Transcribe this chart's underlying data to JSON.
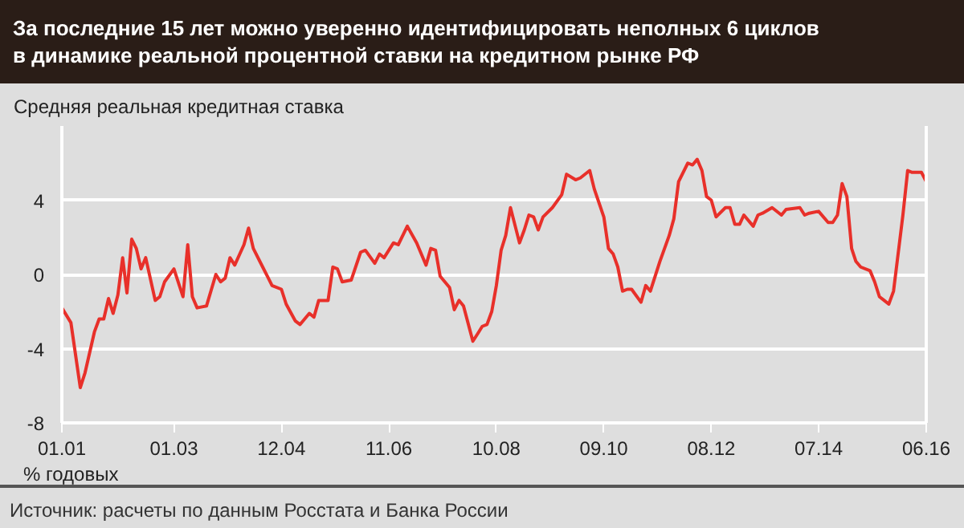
{
  "chart_data": {
    "type": "line",
    "title": "За последние 15 лет можно уверенно идентифицировать неполных 6 циклов\nв динамике реальной процентной ставки на кредитном рынке РФ",
    "ylabel": "Средняя реальная кредитная ставка",
    "annotations": [
      "% годовых",
      "Источник: расчеты по данным Росстата и Банка России"
    ],
    "x": [
      "2001-01",
      "2001-03",
      "2001-05",
      "2001-06",
      "2001-08",
      "2001-09",
      "2001-10",
      "2001-11",
      "2001-12",
      "2002-01",
      "2002-02",
      "2002-03",
      "2002-04",
      "2002-05",
      "2002-06",
      "2002-07",
      "2002-09",
      "2002-10",
      "2002-11",
      "2003-01",
      "2003-03",
      "2003-04",
      "2003-05",
      "2003-06",
      "2003-08",
      "2003-10",
      "2003-11",
      "2003-12",
      "2004-01",
      "2004-02",
      "2004-04",
      "2004-05",
      "2004-06",
      "2004-08",
      "2004-09",
      "2004-10",
      "2004-12",
      "2005-01",
      "2005-03",
      "2005-04",
      "2005-06",
      "2005-07",
      "2005-08",
      "2005-10",
      "2005-11",
      "2005-12",
      "2006-01",
      "2006-03",
      "2006-05",
      "2006-06",
      "2006-08",
      "2006-09",
      "2006-10",
      "2006-12",
      "2007-01",
      "2007-03",
      "2007-05",
      "2007-07",
      "2007-08",
      "2007-09",
      "2007-10",
      "2007-12",
      "2008-01",
      "2008-02",
      "2008-03",
      "2008-05",
      "2008-06",
      "2008-07",
      "2008-08",
      "2008-09",
      "2008-10",
      "2008-11",
      "2008-12",
      "2009-01",
      "2009-02",
      "2009-03",
      "2009-04",
      "2009-05",
      "2009-06",
      "2009-07",
      "2009-08",
      "2009-10",
      "2009-12",
      "2010-01",
      "2010-03",
      "2010-04",
      "2010-06",
      "2010-07",
      "2010-09",
      "2010-10",
      "2010-11",
      "2010-12",
      "2011-01",
      "2011-02",
      "2011-03",
      "2011-05",
      "2011-06",
      "2011-07",
      "2011-09",
      "2011-11",
      "2011-12",
      "2012-01",
      "2012-03",
      "2012-04",
      "2012-05",
      "2012-06",
      "2012-07",
      "2012-08",
      "2012-09",
      "2012-11",
      "2012-12",
      "2013-01",
      "2013-02",
      "2013-03",
      "2013-05",
      "2013-06",
      "2013-07",
      "2013-09",
      "2013-11",
      "2013-12",
      "2014-03",
      "2014-04",
      "2014-05",
      "2014-07",
      "2014-09",
      "2014-10",
      "2014-11",
      "2014-12",
      "2015-01",
      "2015-02",
      "2015-03",
      "2015-04",
      "2015-06",
      "2015-07",
      "2015-08",
      "2015-09",
      "2015-10",
      "2015-11",
      "2016-01",
      "2016-02",
      "2016-03",
      "2016-05",
      "2016-06"
    ],
    "series": [
      {
        "color": "#e8302a",
        "values": [
          -1.8,
          -2.6,
          -6.1,
          -5.3,
          -3.1,
          -2.4,
          -2.4,
          -1.3,
          -2.1,
          -1.1,
          0.9,
          -1.0,
          1.9,
          1.4,
          0.3,
          0.9,
          -1.4,
          -1.2,
          -0.4,
          0.3,
          -1.2,
          1.6,
          -1.2,
          -1.8,
          -1.7,
          0.0,
          -0.4,
          -0.2,
          0.9,
          0.5,
          1.6,
          2.5,
          1.4,
          0.4,
          -0.1,
          -0.6,
          -0.8,
          -1.6,
          -2.5,
          -2.7,
          -2.1,
          -2.3,
          -1.4,
          -1.4,
          0.4,
          0.3,
          -0.4,
          -0.3,
          1.2,
          1.3,
          0.6,
          1.1,
          0.9,
          1.7,
          1.6,
          2.6,
          1.7,
          0.5,
          1.4,
          1.3,
          -0.1,
          -0.7,
          -1.9,
          -1.4,
          -1.7,
          -3.6,
          -3.2,
          -2.8,
          -2.7,
          -2.0,
          -0.6,
          1.3,
          2.1,
          3.6,
          2.6,
          1.7,
          2.4,
          3.2,
          3.1,
          2.4,
          3.1,
          3.6,
          4.3,
          5.4,
          5.1,
          5.2,
          5.6,
          4.6,
          3.1,
          1.4,
          1.1,
          0.4,
          -0.9,
          -0.8,
          -0.8,
          -1.5,
          -0.6,
          -0.9,
          0.7,
          2.1,
          3.0,
          5.0,
          6.0,
          5.9,
          6.2,
          5.6,
          4.2,
          4.0,
          3.1,
          3.6,
          3.6,
          2.7,
          2.7,
          3.2,
          2.6,
          3.2,
          3.3,
          3.6,
          3.2,
          3.5,
          3.6,
          3.2,
          3.3,
          3.4,
          2.8,
          2.8,
          3.2,
          4.9,
          4.2,
          1.4,
          0.7,
          0.4,
          0.2,
          -0.4,
          -1.2,
          -1.4,
          -1.6,
          -0.9,
          3.2,
          5.6,
          5.5,
          5.5,
          5.0
        ]
      }
    ],
    "xlim": [
      "2001-01",
      "2016-06"
    ],
    "xticks": [
      {
        "value": "2001-01",
        "label": "01.01"
      },
      {
        "value": "2003-01",
        "label": "01.03"
      },
      {
        "value": "2004-12",
        "label": "12.04"
      },
      {
        "value": "2006-11",
        "label": "11.06"
      },
      {
        "value": "2008-10",
        "label": "10.08"
      },
      {
        "value": "2010-09",
        "label": "09.10"
      },
      {
        "value": "2012-08",
        "label": "08.12"
      },
      {
        "value": "2014-07",
        "label": "07.14"
      },
      {
        "value": "2016-06",
        "label": "06.16"
      }
    ],
    "ylim": [
      -8,
      8
    ],
    "yticks": [
      -8,
      -4,
      0,
      4
    ],
    "grid": "y",
    "marker": "none",
    "line_style": "solid"
  }
}
